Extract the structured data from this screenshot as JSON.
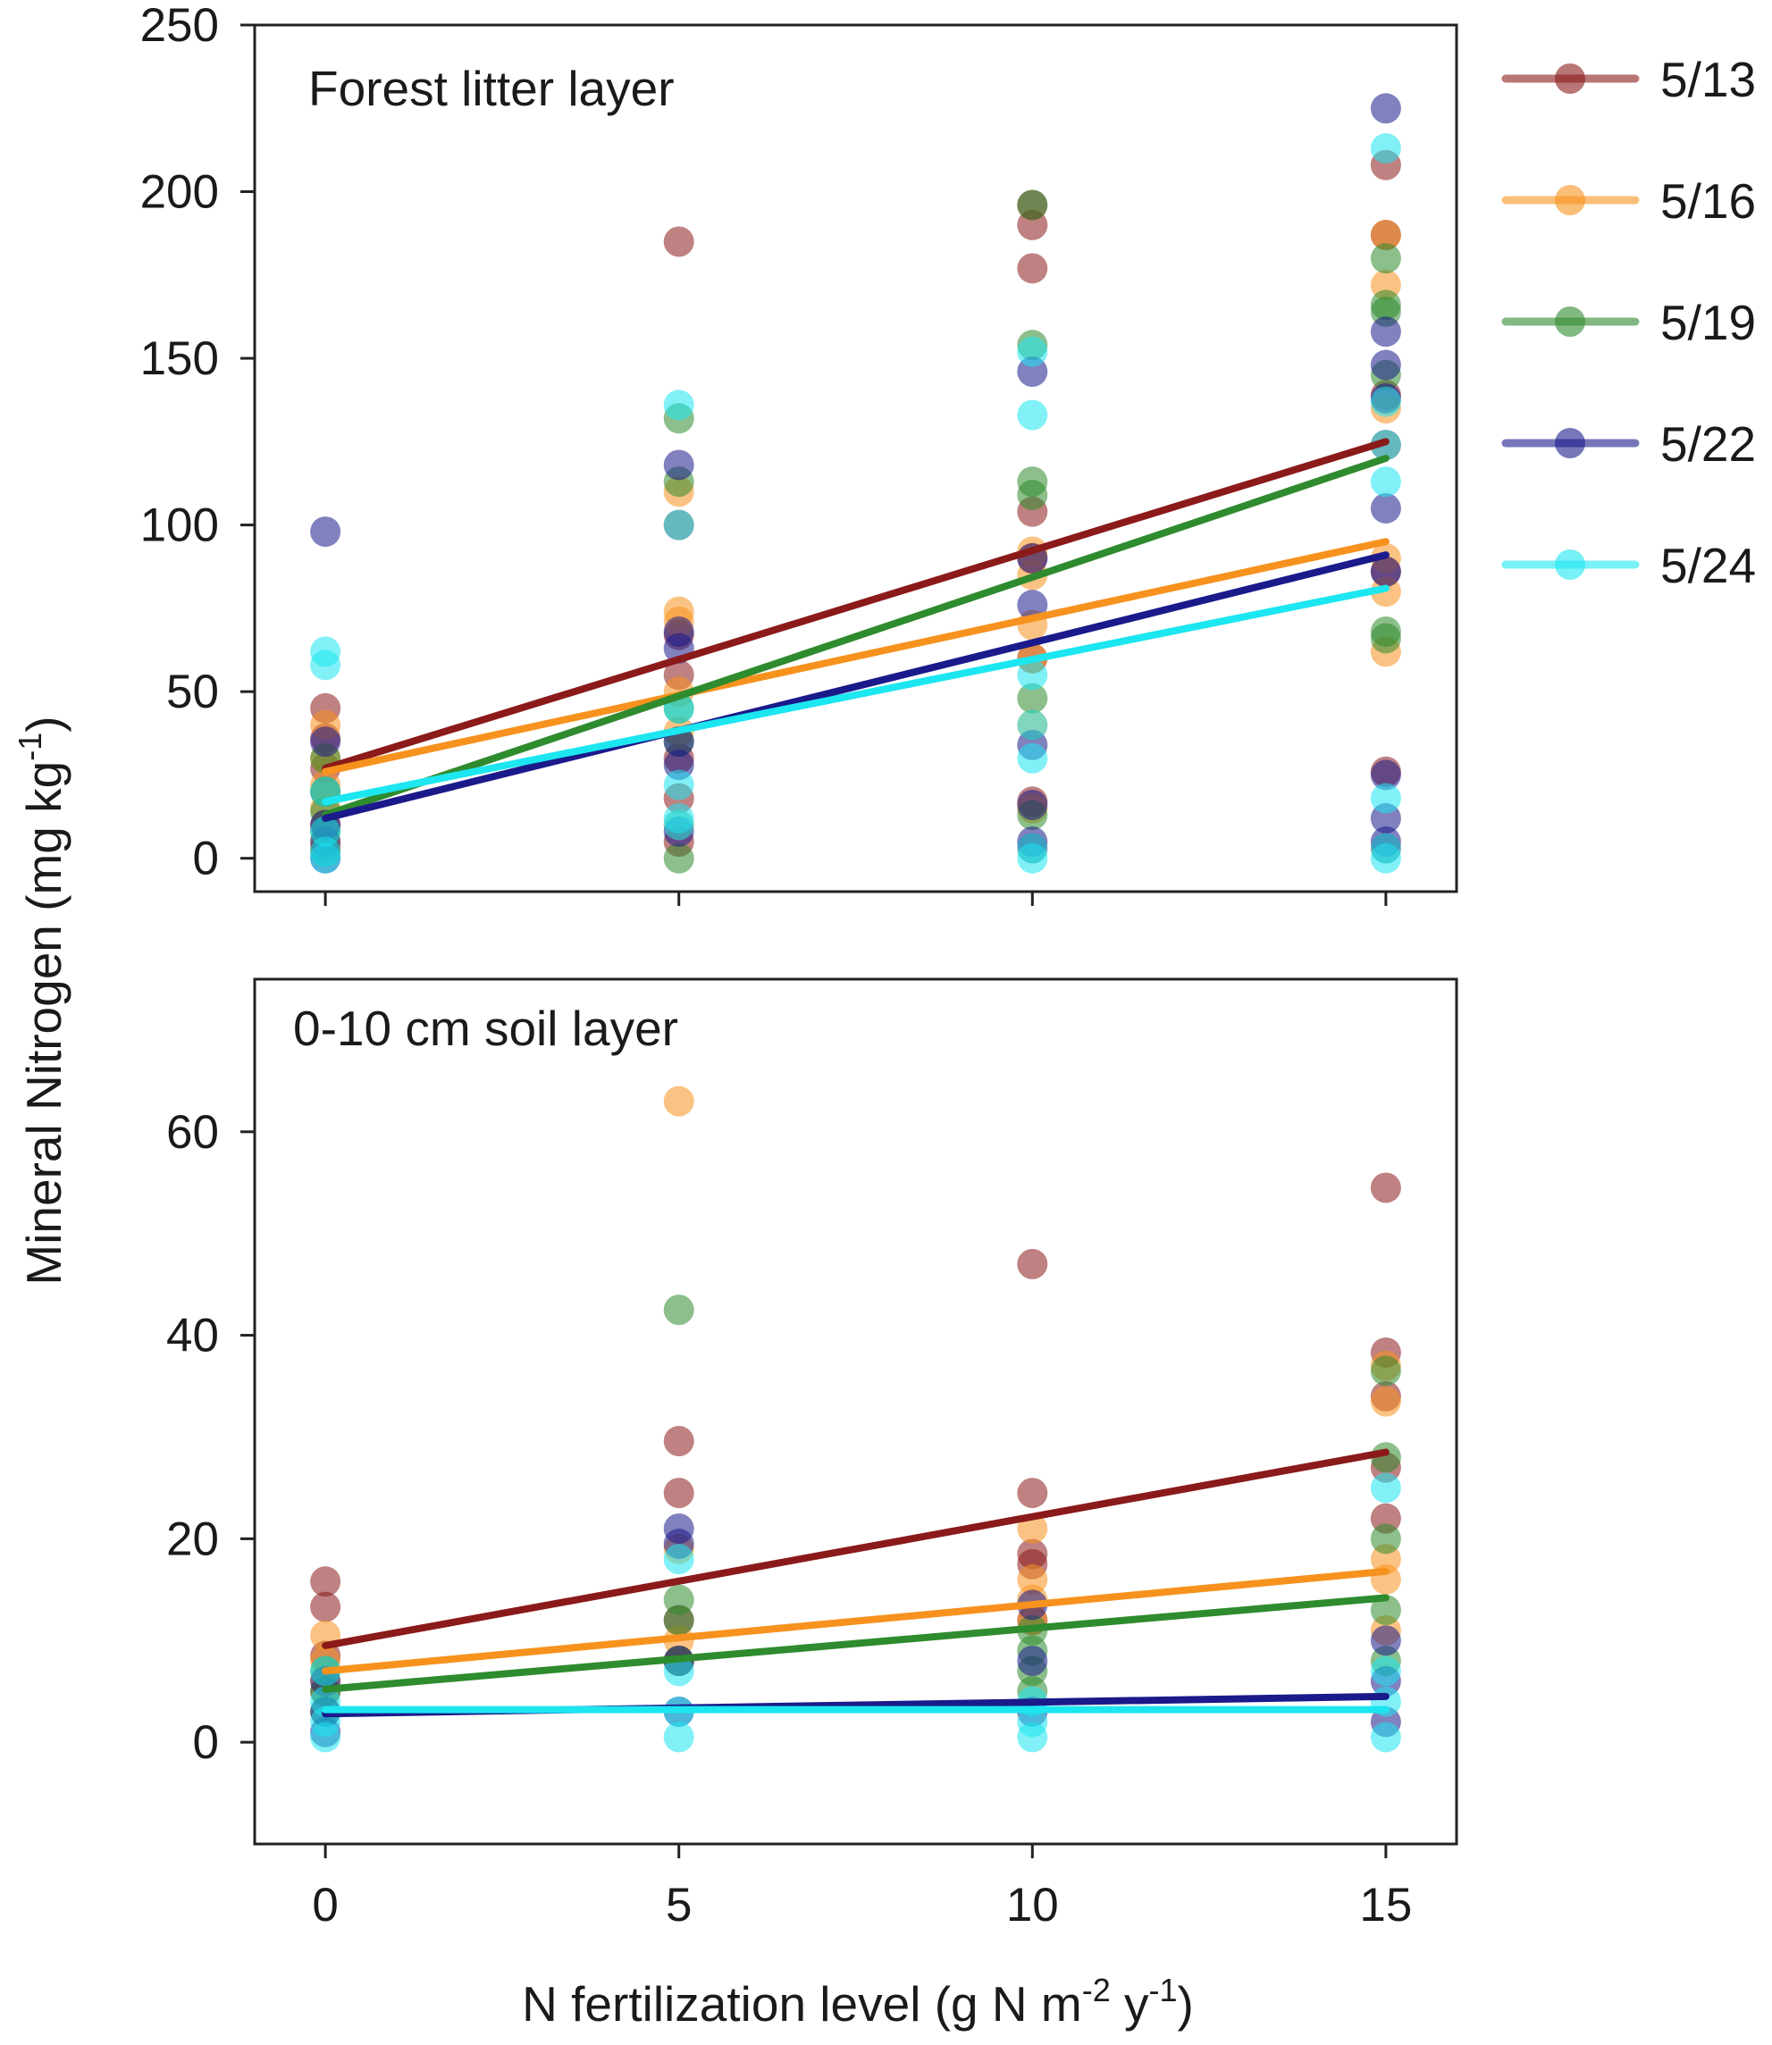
{
  "chart_data": {
    "type": "scatter",
    "ylabel_main": "Mineral Nitrogen (mg kg",
    "ylabel_sup": "-1",
    "ylabel_close": ")",
    "xlabel_pre": "N fertilization level (g N m",
    "xlabel_sup1": "-2",
    "xlabel_mid": " y",
    "xlabel_sup2": "-1",
    "xlabel_close": ")",
    "x_ticks": [
      0,
      5,
      10,
      15
    ],
    "x_tick_labels": [
      "0",
      "5",
      "10",
      "15"
    ],
    "legend": [
      {
        "label": "5/13",
        "color": "#8B1A1A"
      },
      {
        "label": "5/16",
        "color": "#F7921E"
      },
      {
        "label": "5/19",
        "color": "#2E8B2E"
      },
      {
        "label": "5/22",
        "color": "#1A1A8B"
      },
      {
        "label": "5/24",
        "color": "#1CE6F0"
      }
    ],
    "panels": [
      {
        "title": "Forest litter layer",
        "xlim": [
          -1,
          16
        ],
        "ylim": [
          -10,
          250
        ],
        "y_ticks": [
          0,
          50,
          100,
          150,
          200,
          250
        ],
        "y_tick_labels": [
          "0",
          "50",
          "100",
          "150",
          "200",
          "250"
        ],
        "series": [
          {
            "name": "5/13",
            "line": [
              [
                0,
                27
              ],
              [
                15,
                125
              ]
            ],
            "points": [
              [
                0,
                45
              ],
              [
                0,
                36
              ],
              [
                0,
                27
              ],
              [
                0,
                20
              ],
              [
                0,
                10
              ],
              [
                0,
                3
              ],
              [
                5,
                185
              ],
              [
                5,
                100
              ],
              [
                5,
                67
              ],
              [
                5,
                55
              ],
              [
                5,
                30
              ],
              [
                5,
                18
              ],
              [
                5,
                5
              ],
              [
                10,
                196
              ],
              [
                10,
                190
              ],
              [
                10,
                177
              ],
              [
                10,
                104
              ],
              [
                10,
                90
              ],
              [
                10,
                60
              ],
              [
                10,
                17
              ],
              [
                10,
                3
              ],
              [
                15,
                208
              ],
              [
                15,
                187
              ],
              [
                15,
                139
              ],
              [
                15,
                124
              ],
              [
                15,
                86
              ],
              [
                15,
                26
              ],
              [
                15,
                3
              ]
            ]
          },
          {
            "name": "5/16",
            "line": [
              [
                0,
                26
              ],
              [
                15,
                95
              ]
            ],
            "points": [
              [
                0,
                40
              ],
              [
                0,
                30
              ],
              [
                0,
                22
              ],
              [
                0,
                15
              ],
              [
                0,
                5
              ],
              [
                5,
                110
              ],
              [
                5,
                74
              ],
              [
                5,
                71
              ],
              [
                5,
                50
              ],
              [
                5,
                38
              ],
              [
                5,
                10
              ],
              [
                10,
                92
              ],
              [
                10,
                85
              ],
              [
                10,
                70
              ],
              [
                10,
                60
              ],
              [
                10,
                40
              ],
              [
                10,
                15
              ],
              [
                15,
                187
              ],
              [
                15,
                172
              ],
              [
                15,
                135
              ],
              [
                15,
                90
              ],
              [
                15,
                80
              ],
              [
                15,
                62
              ]
            ]
          },
          {
            "name": "5/19",
            "line": [
              [
                0,
                13
              ],
              [
                15,
                120
              ]
            ],
            "points": [
              [
                0,
                30
              ],
              [
                0,
                20
              ],
              [
                0,
                14
              ],
              [
                0,
                8
              ],
              [
                0,
                2
              ],
              [
                5,
                132
              ],
              [
                5,
                113
              ],
              [
                5,
                45
              ],
              [
                5,
                35
              ],
              [
                5,
                0
              ],
              [
                10,
                196
              ],
              [
                10,
                154
              ],
              [
                10,
                113
              ],
              [
                10,
                109
              ],
              [
                10,
                48
              ],
              [
                10,
                13
              ],
              [
                15,
                180
              ],
              [
                15,
                166
              ],
              [
                15,
                164
              ],
              [
                15,
                145
              ],
              [
                15,
                68
              ],
              [
                15,
                66
              ]
            ]
          },
          {
            "name": "5/22",
            "line": [
              [
                0,
                12
              ],
              [
                15,
                91
              ]
            ],
            "points": [
              [
                0,
                98
              ],
              [
                0,
                35
              ],
              [
                0,
                10
              ],
              [
                0,
                5
              ],
              [
                0,
                0
              ],
              [
                5,
                118
              ],
              [
                5,
                68
              ],
              [
                5,
                63
              ],
              [
                5,
                35
              ],
              [
                5,
                28
              ],
              [
                5,
                8
              ],
              [
                10,
                146
              ],
              [
                10,
                90
              ],
              [
                10,
                76
              ],
              [
                10,
                34
              ],
              [
                10,
                16
              ],
              [
                10,
                5
              ],
              [
                15,
                225
              ],
              [
                15,
                158
              ],
              [
                15,
                148
              ],
              [
                15,
                138
              ],
              [
                15,
                105
              ],
              [
                15,
                86
              ],
              [
                15,
                25
              ],
              [
                15,
                12
              ],
              [
                15,
                5
              ]
            ]
          },
          {
            "name": "5/24",
            "line": [
              [
                0,
                17
              ],
              [
                15,
                81
              ]
            ],
            "points": [
              [
                0,
                62
              ],
              [
                0,
                58
              ],
              [
                0,
                20
              ],
              [
                0,
                8
              ],
              [
                0,
                2
              ],
              [
                0,
                0
              ],
              [
                5,
                136
              ],
              [
                5,
                100
              ],
              [
                5,
                45
              ],
              [
                5,
                22
              ],
              [
                5,
                12
              ],
              [
                5,
                10
              ],
              [
                10,
                152
              ],
              [
                10,
                133
              ],
              [
                10,
                55
              ],
              [
                10,
                40
              ],
              [
                10,
                30
              ],
              [
                10,
                3
              ],
              [
                10,
                0
              ],
              [
                15,
                213
              ],
              [
                15,
                137
              ],
              [
                15,
                124
              ],
              [
                15,
                113
              ],
              [
                15,
                18
              ],
              [
                15,
                3
              ],
              [
                15,
                0
              ]
            ]
          }
        ]
      },
      {
        "title": "0-10 cm soil layer",
        "xlim": [
          -1,
          16
        ],
        "ylim": [
          -10,
          75
        ],
        "y_ticks": [
          0,
          20,
          40,
          60
        ],
        "y_tick_labels": [
          "0",
          "20",
          "40",
          "60"
        ],
        "series": [
          {
            "name": "5/13",
            "line": [
              [
                0,
                9.5
              ],
              [
                15,
                28.5
              ]
            ],
            "points": [
              [
                0,
                15.8
              ],
              [
                0,
                13.3
              ],
              [
                0,
                8.5
              ],
              [
                0,
                5
              ],
              [
                5,
                29.6
              ],
              [
                5,
                24.5
              ],
              [
                5,
                12
              ],
              [
                5,
                8
              ],
              [
                10,
                47
              ],
              [
                10,
                24.5
              ],
              [
                10,
                18.5
              ],
              [
                10,
                17.5
              ],
              [
                10,
                12
              ],
              [
                15,
                54.5
              ],
              [
                15,
                38.3
              ],
              [
                15,
                34
              ],
              [
                15,
                27
              ],
              [
                15,
                22
              ]
            ]
          },
          {
            "name": "5/16",
            "line": [
              [
                0,
                7
              ],
              [
                15,
                16.8
              ]
            ],
            "points": [
              [
                0,
                10.5
              ],
              [
                0,
                8
              ],
              [
                0,
                6
              ],
              [
                5,
                63
              ],
              [
                5,
                19
              ],
              [
                5,
                10
              ],
              [
                5,
                8
              ],
              [
                10,
                21
              ],
              [
                10,
                16
              ],
              [
                10,
                14
              ],
              [
                10,
                12
              ],
              [
                15,
                37
              ],
              [
                15,
                33.5
              ],
              [
                15,
                18
              ],
              [
                15,
                16
              ],
              [
                15,
                11
              ]
            ]
          },
          {
            "name": "5/19",
            "line": [
              [
                0,
                5.2
              ],
              [
                15,
                14.2
              ]
            ],
            "points": [
              [
                0,
                7
              ],
              [
                0,
                5
              ],
              [
                0,
                3
              ],
              [
                5,
                42.5
              ],
              [
                5,
                14
              ],
              [
                5,
                12
              ],
              [
                5,
                8
              ],
              [
                10,
                11
              ],
              [
                10,
                9
              ],
              [
                10,
                7
              ],
              [
                10,
                5
              ],
              [
                15,
                36.5
              ],
              [
                15,
                28
              ],
              [
                15,
                20
              ],
              [
                15,
                13
              ],
              [
                15,
                8
              ]
            ]
          },
          {
            "name": "5/22",
            "line": [
              [
                0,
                2.8
              ],
              [
                15,
                4.5
              ]
            ],
            "points": [
              [
                0,
                6
              ],
              [
                0,
                3
              ],
              [
                0,
                1
              ],
              [
                5,
                21
              ],
              [
                5,
                19.5
              ],
              [
                5,
                8
              ],
              [
                5,
                3
              ],
              [
                10,
                13.5
              ],
              [
                10,
                8
              ],
              [
                10,
                3
              ],
              [
                15,
                10
              ],
              [
                15,
                6
              ],
              [
                15,
                2
              ]
            ]
          },
          {
            "name": "5/24",
            "line": [
              [
                0,
                3.2
              ],
              [
                15,
                3.2
              ]
            ],
            "points": [
              [
                0,
                7
              ],
              [
                0,
                4
              ],
              [
                0,
                2
              ],
              [
                0,
                0.5
              ],
              [
                5,
                18
              ],
              [
                5,
                7
              ],
              [
                5,
                3
              ],
              [
                5,
                0.5
              ],
              [
                10,
                4
              ],
              [
                10,
                2
              ],
              [
                10,
                0.5
              ],
              [
                15,
                25
              ],
              [
                15,
                7
              ],
              [
                15,
                4
              ],
              [
                15,
                0.5
              ]
            ]
          }
        ]
      }
    ]
  }
}
